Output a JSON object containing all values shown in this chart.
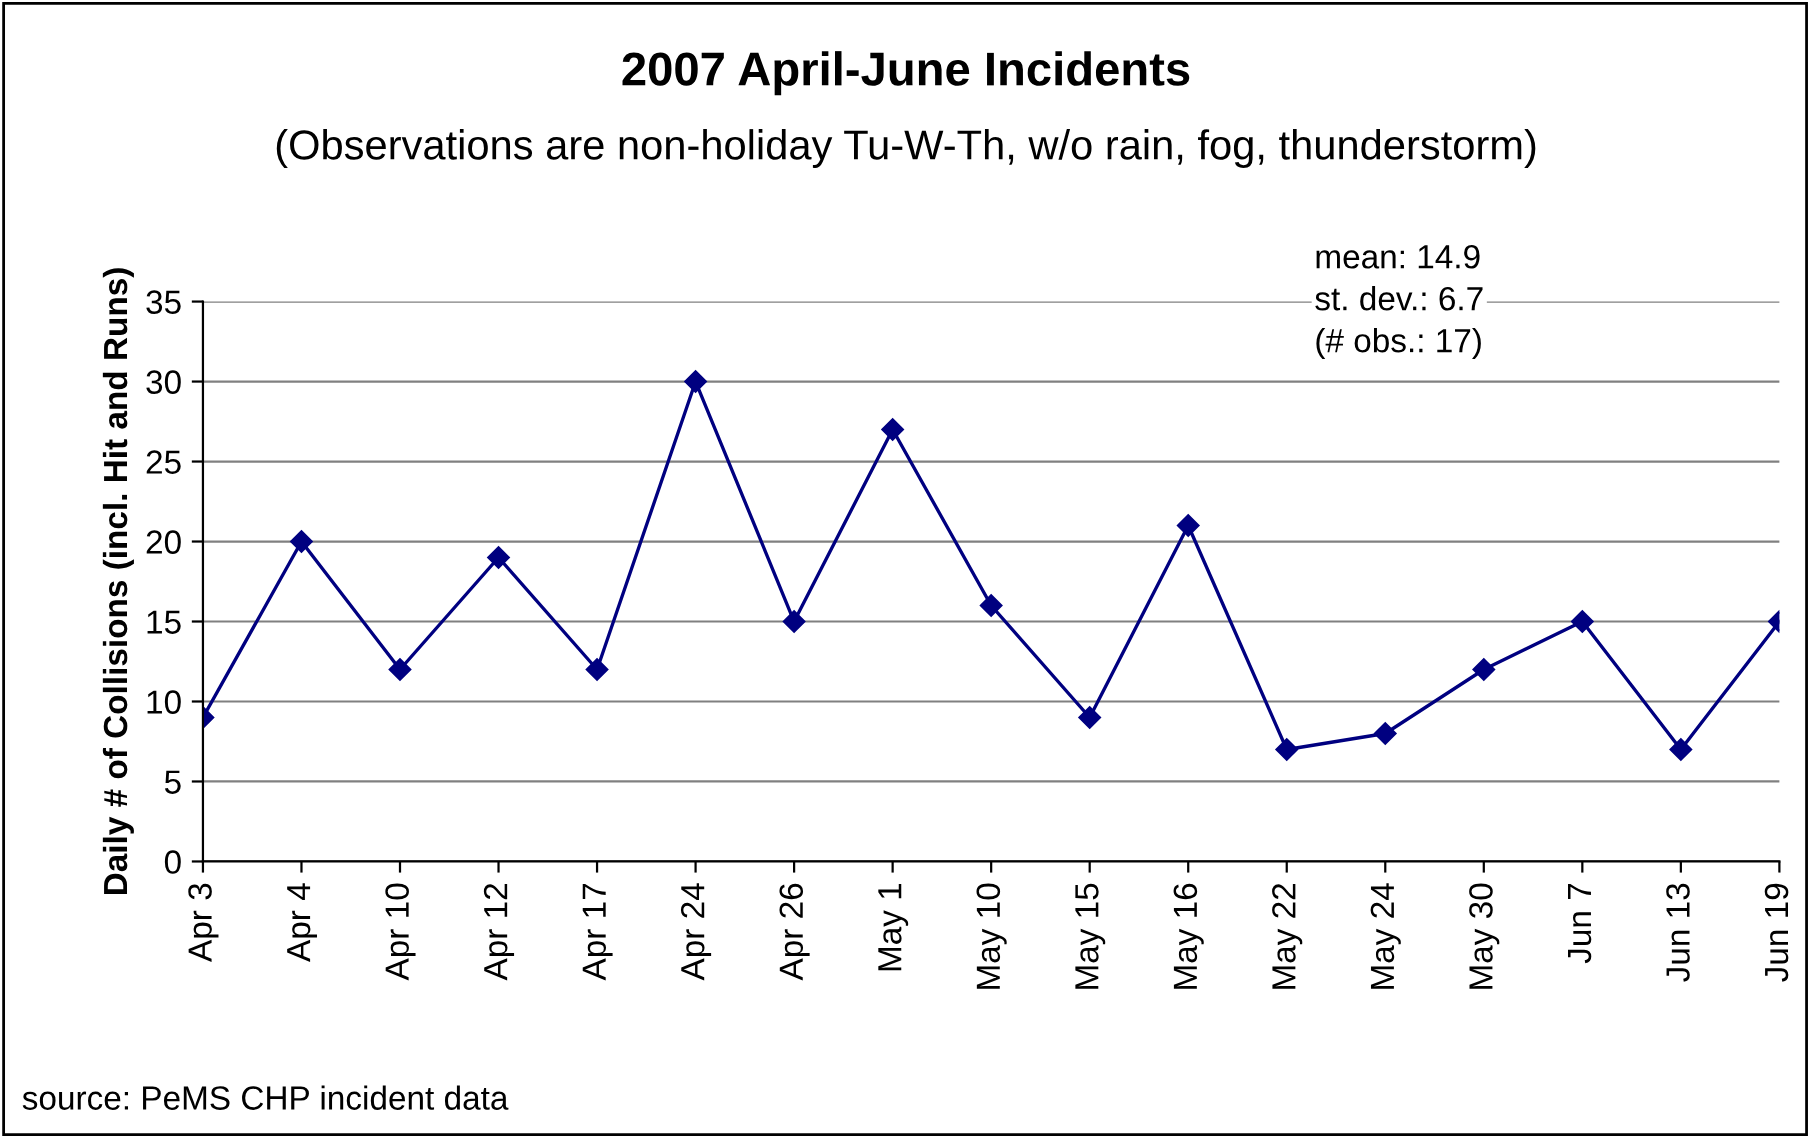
{
  "chart_data": {
    "type": "line",
    "title": "2007 April-June Incidents",
    "subtitle": "(Observations are non-holiday Tu-W-Th, w/o rain, fog, thunderstorm)",
    "ylabel": "Daily # of Collisions (incl. Hit and Runs)",
    "categories": [
      "Apr 3",
      "Apr 4",
      "Apr 10",
      "Apr 12",
      "Apr 17",
      "Apr 24",
      "Apr 26",
      "May 1",
      "May 10",
      "May 15",
      "May 16",
      "May 22",
      "May 24",
      "May 30",
      "Jun 7",
      "Jun 13",
      "Jun 19"
    ],
    "series": [
      {
        "color": "#000080",
        "values": [
          9,
          20,
          12,
          19,
          12,
          30,
          15,
          27,
          16,
          9,
          21,
          7,
          8,
          12,
          15,
          7,
          15
        ]
      }
    ],
    "ylim": [
      0,
      35
    ],
    "yticks": [
      0,
      5,
      10,
      15,
      20,
      25,
      30,
      35
    ],
    "grid": "y",
    "legend": false,
    "marker": "diamond",
    "line_style": "solid",
    "annotations": [
      "mean: 14.9",
      "st. dev.: 6.7",
      "(# obs.: 17)",
      "source: PeMS CHP incident data"
    ]
  }
}
